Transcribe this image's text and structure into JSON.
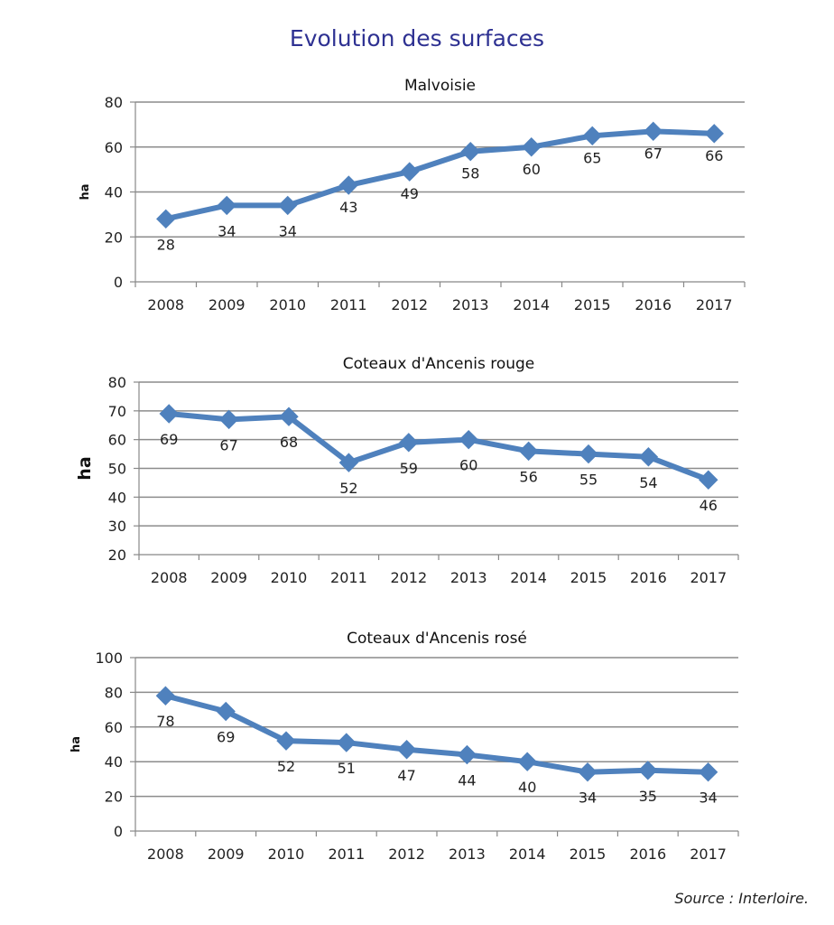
{
  "page": {
    "title": "Evolution des surfaces",
    "source": "Source : Interloire."
  },
  "colors": {
    "series": "#4f81bd",
    "grid": "#8c8c8c",
    "axis": "#888888",
    "title": "#2e3192"
  },
  "chart_data": [
    {
      "type": "line",
      "title": "Malvoisie",
      "ylabel": "ha",
      "x": [
        "2008",
        "2009",
        "2010",
        "2011",
        "2012",
        "2013",
        "2014",
        "2015",
        "2016",
        "2017"
      ],
      "series": [
        {
          "values": [
            28,
            34,
            34,
            43,
            49,
            58,
            60,
            65,
            67,
            66
          ]
        }
      ],
      "ylim": [
        0,
        80
      ],
      "yticks": [
        0,
        20,
        40,
        60,
        80
      ],
      "grid": true,
      "marker": "diamond"
    },
    {
      "type": "line",
      "title": "Coteaux d'Ancenis rouge",
      "ylabel": "ha",
      "x": [
        "2008",
        "2009",
        "2010",
        "2011",
        "2012",
        "2013",
        "2014",
        "2015",
        "2016",
        "2017"
      ],
      "series": [
        {
          "values": [
            69,
            67,
            68,
            52,
            59,
            60,
            56,
            55,
            54,
            46
          ]
        }
      ],
      "ylim": [
        20,
        80
      ],
      "yticks": [
        20,
        30,
        40,
        50,
        60,
        70,
        80
      ],
      "grid": true,
      "marker": "diamond"
    },
    {
      "type": "line",
      "title": "Coteaux d'Ancenis rosé",
      "ylabel": "ha",
      "x": [
        "2008",
        "2009",
        "2010",
        "2011",
        "2012",
        "2013",
        "2014",
        "2015",
        "2016",
        "2017"
      ],
      "series": [
        {
          "values": [
            78,
            69,
            52,
            51,
            47,
            44,
            40,
            34,
            35,
            34
          ]
        }
      ],
      "ylim": [
        0,
        100
      ],
      "yticks": [
        0,
        20,
        40,
        60,
        80,
        100
      ],
      "grid": true,
      "marker": "diamond"
    }
  ]
}
